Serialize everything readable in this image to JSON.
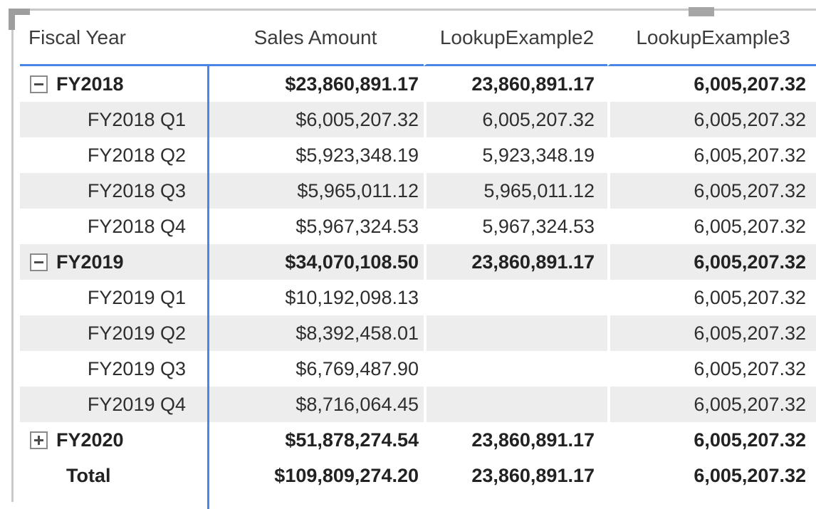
{
  "visual_frame": {
    "corner_handle": "resize-corner",
    "top_handle": "resize-handle"
  },
  "colors": {
    "grid_accent": "#4a86e8",
    "banding": "#ededed",
    "frame_border": "#c9c9c9",
    "handle": "#a6a6a6",
    "text": "#2e2e2e"
  },
  "matrix": {
    "columns": [
      {
        "label": "Fiscal Year"
      },
      {
        "label": "Sales Amount"
      },
      {
        "label": "LookupExample2"
      },
      {
        "label": "LookupExample3"
      }
    ],
    "rows": [
      {
        "label": "FY2018",
        "type": "parent",
        "toggle": "minus",
        "bold": true,
        "banded": false,
        "sales": "$23,860,891.17",
        "lookup2": "23,860,891.17",
        "lookup3": "6,005,207.32"
      },
      {
        "label": "FY2018 Q1",
        "type": "quarter",
        "toggle": "none",
        "bold": false,
        "banded": true,
        "sales": "$6,005,207.32",
        "lookup2": "6,005,207.32",
        "lookup3": "6,005,207.32"
      },
      {
        "label": "FY2018 Q2",
        "type": "quarter",
        "toggle": "none",
        "bold": false,
        "banded": false,
        "sales": "$5,923,348.19",
        "lookup2": "5,923,348.19",
        "lookup3": "6,005,207.32"
      },
      {
        "label": "FY2018 Q3",
        "type": "quarter",
        "toggle": "none",
        "bold": false,
        "banded": true,
        "sales": "$5,965,011.12",
        "lookup2": "5,965,011.12",
        "lookup3": "6,005,207.32"
      },
      {
        "label": "FY2018 Q4",
        "type": "quarter",
        "toggle": "none",
        "bold": false,
        "banded": false,
        "sales": "$5,967,324.53",
        "lookup2": "5,967,324.53",
        "lookup3": "6,005,207.32"
      },
      {
        "label": "FY2019",
        "type": "parent",
        "toggle": "minus",
        "bold": true,
        "banded": true,
        "sales": "$34,070,108.50",
        "lookup2": "23,860,891.17",
        "lookup3": "6,005,207.32"
      },
      {
        "label": "FY2019 Q1",
        "type": "quarter",
        "toggle": "none",
        "bold": false,
        "banded": false,
        "sales": "$10,192,098.13",
        "lookup2": "",
        "lookup3": "6,005,207.32"
      },
      {
        "label": "FY2019 Q2",
        "type": "quarter",
        "toggle": "none",
        "bold": false,
        "banded": true,
        "sales": "$8,392,458.01",
        "lookup2": "",
        "lookup3": "6,005,207.32"
      },
      {
        "label": "FY2019 Q3",
        "type": "quarter",
        "toggle": "none",
        "bold": false,
        "banded": false,
        "sales": "$6,769,487.90",
        "lookup2": "",
        "lookup3": "6,005,207.32"
      },
      {
        "label": "FY2019 Q4",
        "type": "quarter",
        "toggle": "none",
        "bold": false,
        "banded": true,
        "sales": "$8,716,064.45",
        "lookup2": "",
        "lookup3": "6,005,207.32"
      },
      {
        "label": "FY2020",
        "type": "parent",
        "toggle": "plus",
        "bold": true,
        "banded": false,
        "sales": "$51,878,274.54",
        "lookup2": "23,860,891.17",
        "lookup3": "6,005,207.32"
      },
      {
        "label": "Total",
        "type": "total",
        "toggle": "none",
        "bold": true,
        "banded": false,
        "sales": "$109,809,274.20",
        "lookup2": "23,860,891.17",
        "lookup3": "6,005,207.32"
      }
    ]
  }
}
